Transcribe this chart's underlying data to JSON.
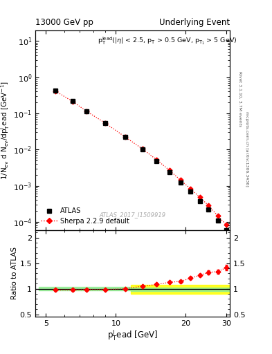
{
  "title_left": "13000 GeV pp",
  "title_right": "Underlying Event",
  "watermark": "ATLAS_2017_I1509919",
  "right_label_top": "Rivet 3.1.10, 3.7M events",
  "right_label_mid": "mcplots.cern.ch [arXiv:1306.3436]",
  "ylabel_main": "1/N_{ev} d N_{ev}/dp_{T}^{l}ead [GeV^{-1}]",
  "ylabel_ratio": "Ratio to ATLAS",
  "xlabel": "p_{T}^{l}ead [GeV]",
  "atlas_x": [
    5.5,
    6.5,
    7.5,
    9.0,
    11.0,
    13.0,
    15.0,
    17.0,
    19.0,
    21.0,
    23.0,
    25.0,
    27.5,
    30.0
  ],
  "atlas_y": [
    0.42,
    0.22,
    0.115,
    0.055,
    0.022,
    0.01,
    0.0048,
    0.0024,
    0.00125,
    0.00068,
    0.00038,
    0.00022,
    0.00011,
    5.8e-05
  ],
  "atlas_yerr_lo": [
    0.018,
    0.01,
    0.005,
    0.0025,
    0.001,
    0.0005,
    0.00023,
    0.00011,
    6e-05,
    3.3e-05,
    1.8e-05,
    1e-05,
    5.2e-06,
    2.8e-06
  ],
  "atlas_yerr_hi": [
    0.018,
    0.01,
    0.005,
    0.0025,
    0.001,
    0.0005,
    0.00023,
    0.00011,
    6e-05,
    3.3e-05,
    1.8e-05,
    1e-05,
    5.2e-06,
    2.8e-06
  ],
  "sherpa_x": [
    5.5,
    6.5,
    7.5,
    9.0,
    11.0,
    13.0,
    15.0,
    17.0,
    19.0,
    21.0,
    23.0,
    25.0,
    27.5,
    30.0
  ],
  "sherpa_y": [
    0.41,
    0.215,
    0.113,
    0.054,
    0.022,
    0.0105,
    0.0052,
    0.0027,
    0.00143,
    0.00082,
    0.00048,
    0.00029,
    0.000147,
    8.2e-05
  ],
  "ratio_x": [
    5.5,
    6.5,
    7.5,
    9.0,
    11.0,
    13.0,
    15.0,
    17.0,
    19.0,
    21.0,
    23.0,
    25.0,
    27.5,
    30.0
  ],
  "ratio_y": [
    0.975,
    0.977,
    0.983,
    0.982,
    1.0,
    1.05,
    1.083,
    1.125,
    1.144,
    1.206,
    1.263,
    1.318,
    1.336,
    1.414
  ],
  "ratio_yerr": [
    0.02,
    0.018,
    0.015,
    0.013,
    0.013,
    0.015,
    0.018,
    0.022,
    0.025,
    0.028,
    0.03,
    0.035,
    0.038,
    0.055
  ],
  "green_band_xmin": 5.0,
  "green_band_xmax": 17.5,
  "green_band_ylow": 0.97,
  "green_band_yhigh": 1.03,
  "yellow_band_xmin": 17.5,
  "yellow_band_xmax": 31.0,
  "yellow_band_ylow": 0.895,
  "yellow_band_yhigh": 1.075,
  "green_band2_xmin": 17.5,
  "green_band2_xmax": 31.0,
  "green_band2_ylow": 0.955,
  "green_band2_yhigh": 1.025,
  "xlim": [
    4.5,
    31.0
  ],
  "ylim_main": [
    6e-05,
    20.0
  ],
  "ylim_ratio": [
    0.45,
    2.15
  ],
  "color_atlas": "black",
  "color_sherpa": "red"
}
